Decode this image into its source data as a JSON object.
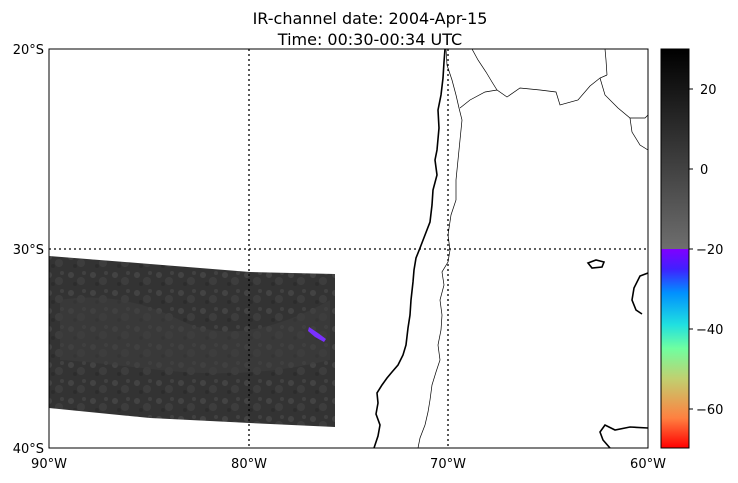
{
  "title": {
    "line1": "IR-channel date: 2004-Apr-15",
    "line2": "Time: 00:30-00:34 UTC"
  },
  "map": {
    "lat_ticks": [
      "20°S",
      "30°S",
      "40°S"
    ],
    "lon_ticks": [
      "90°W",
      "80°W",
      "70°W",
      "60°W"
    ],
    "lon_range_deg": [
      -90,
      -60
    ],
    "lat_range_deg": [
      -40,
      -20
    ],
    "gridlines": "dotted black every 10°"
  },
  "colorbar": {
    "ticks": [
      "20",
      "0",
      "−20",
      "−40",
      "−60"
    ],
    "range": [
      -70,
      30
    ],
    "gray_section": {
      "from": -20,
      "to": 30,
      "colors": [
        "#6e6e6e",
        "#000000"
      ]
    },
    "rainbow_section": {
      "from": -70,
      "to": -20,
      "colors": [
        "#ff0000",
        "#ff8040",
        "#c0d070",
        "#70ffa0",
        "#20e0e0",
        "#0090ff",
        "#4020ff",
        "#8000ff"
      ]
    }
  },
  "colors": {
    "swath_fill": "#3a3a3a",
    "coast": "#000000",
    "border": "#000000"
  }
}
